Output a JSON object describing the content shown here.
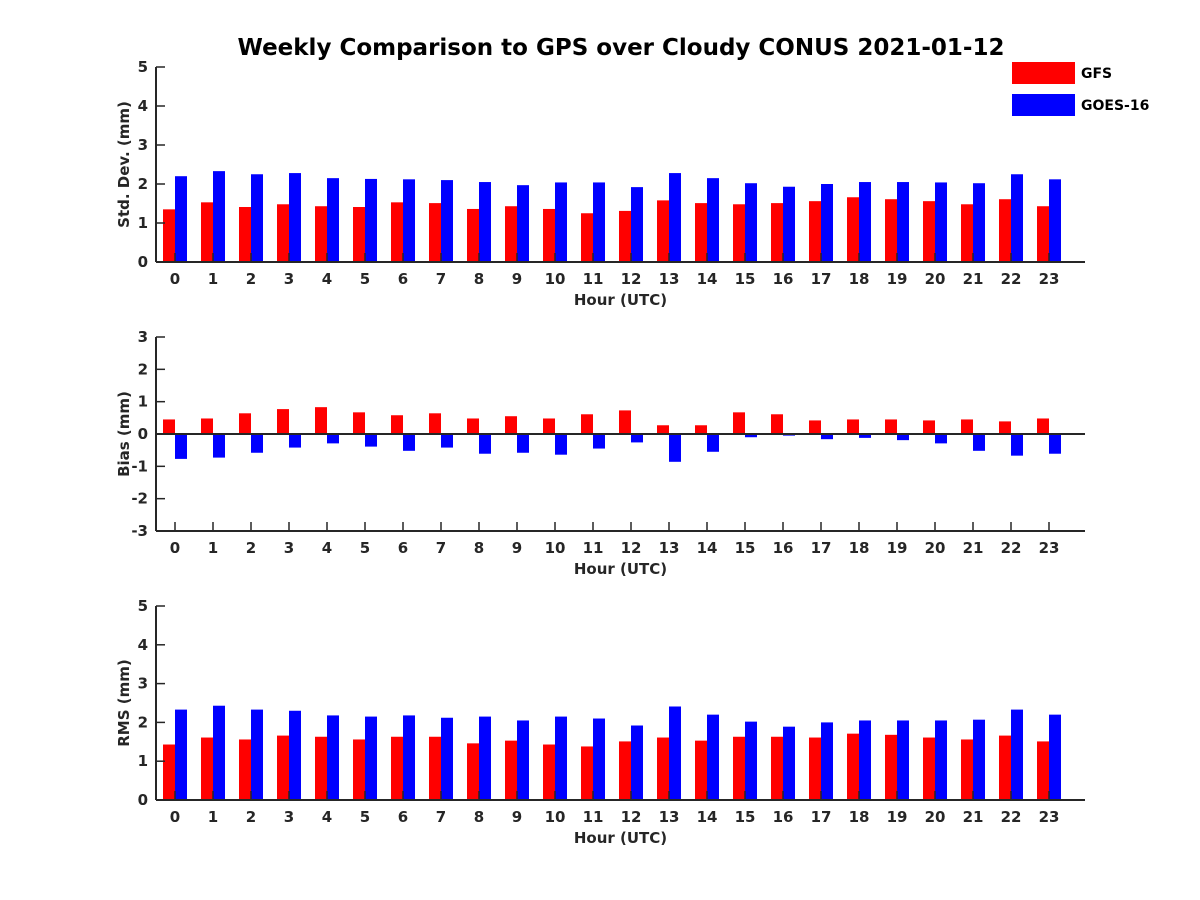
{
  "figure": {
    "title": "Weekly Comparison to GPS over Cloudy CONUS 2021-01-12"
  },
  "legend": {
    "placement": "top-right",
    "items": [
      {
        "label": "GFS",
        "color": "#ff0000"
      },
      {
        "label": "GOES-16",
        "color": "#0000ff"
      }
    ]
  },
  "chart_data": [
    {
      "type": "bar",
      "xlabel": "Hour (UTC)",
      "ylabel": "Std. Dev. (mm)",
      "ylim": [
        0,
        5
      ],
      "yticks": [
        0,
        1,
        2,
        3,
        4,
        5
      ],
      "categories": [
        "0",
        "1",
        "2",
        "3",
        "4",
        "5",
        "6",
        "7",
        "8",
        "9",
        "10",
        "11",
        "12",
        "13",
        "14",
        "15",
        "16",
        "17",
        "18",
        "19",
        "20",
        "21",
        "22",
        "23"
      ],
      "series": [
        {
          "name": "GFS",
          "color": "#ff0000",
          "values": [
            1.35,
            1.53,
            1.41,
            1.48,
            1.43,
            1.41,
            1.53,
            1.51,
            1.36,
            1.43,
            1.36,
            1.25,
            1.31,
            1.58,
            1.51,
            1.48,
            1.51,
            1.56,
            1.66,
            1.61,
            1.56,
            1.48,
            1.61,
            1.43
          ]
        },
        {
          "name": "GOES-16",
          "color": "#0000ff",
          "values": [
            2.2,
            2.33,
            2.25,
            2.28,
            2.15,
            2.13,
            2.12,
            2.1,
            2.05,
            1.97,
            2.04,
            2.04,
            1.92,
            2.28,
            2.15,
            2.02,
            1.93,
            2.0,
            2.05,
            2.05,
            2.04,
            2.02,
            2.25,
            2.12
          ]
        }
      ]
    },
    {
      "type": "bar",
      "xlabel": "Hour (UTC)",
      "ylabel": "Bias (mm)",
      "ylim": [
        -3,
        3
      ],
      "yticks": [
        -3,
        -2,
        -1,
        0,
        1,
        2,
        3
      ],
      "zero_line": true,
      "categories": [
        "0",
        "1",
        "2",
        "3",
        "4",
        "5",
        "6",
        "7",
        "8",
        "9",
        "10",
        "11",
        "12",
        "13",
        "14",
        "15",
        "16",
        "17",
        "18",
        "19",
        "20",
        "21",
        "22",
        "23"
      ],
      "series": [
        {
          "name": "GFS",
          "color": "#ff0000",
          "values": [
            0.45,
            0.48,
            0.64,
            0.77,
            0.83,
            0.67,
            0.58,
            0.64,
            0.48,
            0.55,
            0.48,
            0.61,
            0.73,
            0.27,
            0.27,
            0.67,
            0.61,
            0.42,
            0.45,
            0.45,
            0.42,
            0.45,
            0.39,
            0.48
          ]
        },
        {
          "name": "GOES-16",
          "color": "#0000ff",
          "values": [
            -0.77,
            -0.73,
            -0.58,
            -0.42,
            -0.29,
            -0.39,
            -0.52,
            -0.42,
            -0.61,
            -0.58,
            -0.64,
            -0.45,
            -0.26,
            -0.86,
            -0.55,
            -0.1,
            -0.05,
            -0.16,
            -0.12,
            -0.19,
            -0.29,
            -0.52,
            -0.67,
            -0.61
          ]
        }
      ]
    },
    {
      "type": "bar",
      "xlabel": "Hour (UTC)",
      "ylabel": "RMS (mm)",
      "ylim": [
        0,
        5
      ],
      "yticks": [
        0,
        1,
        2,
        3,
        4,
        5
      ],
      "categories": [
        "0",
        "1",
        "2",
        "3",
        "4",
        "5",
        "6",
        "7",
        "8",
        "9",
        "10",
        "11",
        "12",
        "13",
        "14",
        "15",
        "16",
        "17",
        "18",
        "19",
        "20",
        "21",
        "22",
        "23"
      ],
      "series": [
        {
          "name": "GFS",
          "color": "#ff0000",
          "values": [
            1.43,
            1.61,
            1.56,
            1.66,
            1.63,
            1.56,
            1.63,
            1.63,
            1.46,
            1.53,
            1.43,
            1.38,
            1.51,
            1.61,
            1.53,
            1.63,
            1.63,
            1.61,
            1.71,
            1.68,
            1.61,
            1.56,
            1.66,
            1.51
          ]
        },
        {
          "name": "GOES-16",
          "color": "#0000ff",
          "values": [
            2.33,
            2.43,
            2.33,
            2.3,
            2.18,
            2.15,
            2.18,
            2.12,
            2.15,
            2.05,
            2.15,
            2.1,
            1.92,
            2.41,
            2.2,
            2.02,
            1.89,
            2.0,
            2.05,
            2.05,
            2.05,
            2.07,
            2.33,
            2.2
          ]
        }
      ]
    }
  ]
}
